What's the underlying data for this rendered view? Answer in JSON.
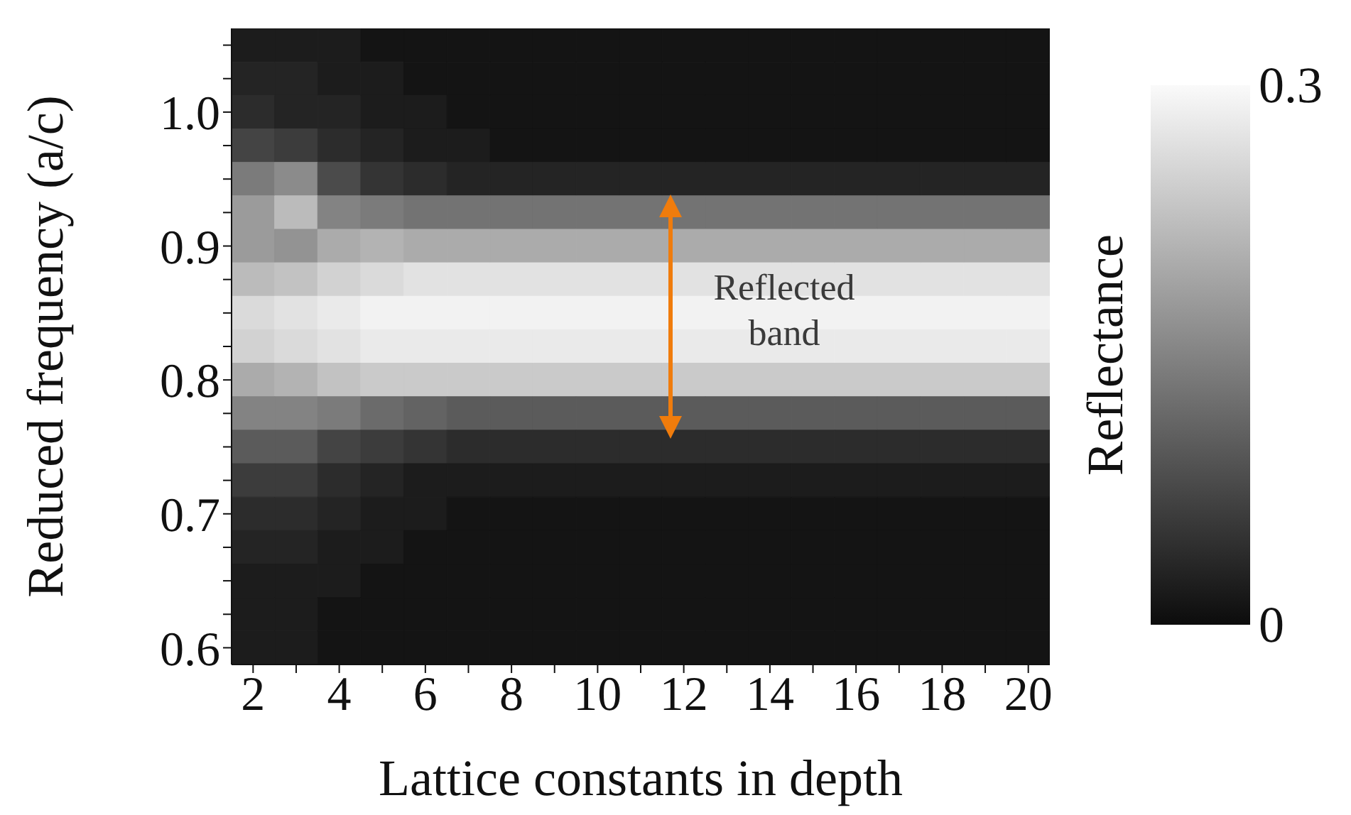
{
  "chart_data": {
    "type": "heatmap",
    "xlabel": "Lattice constants in depth",
    "ylabel": "Reduced frequency (a/c)",
    "clabel": "Reflectance",
    "categories": [
      "2",
      null,
      "4",
      null,
      "6",
      null,
      "8",
      null,
      "10",
      null,
      "12",
      null,
      "14",
      null,
      "16",
      null,
      "18",
      null,
      "20"
    ],
    "y_categories": [
      null,
      null,
      "1.0",
      null,
      null,
      null,
      "0.9",
      null,
      null,
      null,
      "0.8",
      null,
      null,
      null,
      "0.7",
      null,
      null,
      null,
      "0.6"
    ],
    "clim": [
      0,
      0.3
    ],
    "cticks": [
      0,
      0.3
    ],
    "cells": [
      [
        0.02,
        0.02,
        0.02,
        0.01,
        0.01,
        0.01,
        0.01,
        0.01,
        0.01,
        0.01,
        0.01,
        0.01,
        0.01,
        0.01,
        0.01,
        0.01,
        0.01,
        0.01,
        0.01
      ],
      [
        0.03,
        0.03,
        0.02,
        0.02,
        0.01,
        0.01,
        0.01,
        0.01,
        0.01,
        0.01,
        0.01,
        0.01,
        0.01,
        0.01,
        0.01,
        0.01,
        0.01,
        0.01,
        0.01
      ],
      [
        0.04,
        0.03,
        0.03,
        0.02,
        0.02,
        0.01,
        0.01,
        0.01,
        0.01,
        0.01,
        0.01,
        0.01,
        0.01,
        0.01,
        0.01,
        0.01,
        0.01,
        0.01,
        0.01
      ],
      [
        0.07,
        0.06,
        0.04,
        0.03,
        0.02,
        0.02,
        0.01,
        0.01,
        0.01,
        0.01,
        0.01,
        0.01,
        0.01,
        0.01,
        0.01,
        0.01,
        0.01,
        0.01,
        0.01
      ],
      [
        0.14,
        0.16,
        0.08,
        0.05,
        0.04,
        0.03,
        0.03,
        0.03,
        0.03,
        0.03,
        0.03,
        0.03,
        0.03,
        0.03,
        0.03,
        0.03,
        0.03,
        0.03,
        0.03
      ],
      [
        0.18,
        0.22,
        0.15,
        0.14,
        0.13,
        0.13,
        0.13,
        0.13,
        0.13,
        0.13,
        0.13,
        0.13,
        0.13,
        0.13,
        0.13,
        0.13,
        0.13,
        0.13,
        0.13
      ],
      [
        0.18,
        0.17,
        0.2,
        0.21,
        0.2,
        0.2,
        0.2,
        0.2,
        0.2,
        0.2,
        0.2,
        0.2,
        0.2,
        0.2,
        0.2,
        0.2,
        0.2,
        0.2,
        0.2
      ],
      [
        0.22,
        0.23,
        0.25,
        0.26,
        0.27,
        0.27,
        0.27,
        0.27,
        0.27,
        0.27,
        0.27,
        0.27,
        0.27,
        0.27,
        0.27,
        0.27,
        0.27,
        0.27,
        0.27
      ],
      [
        0.26,
        0.27,
        0.28,
        0.29,
        0.29,
        0.29,
        0.29,
        0.29,
        0.29,
        0.29,
        0.29,
        0.29,
        0.29,
        0.29,
        0.29,
        0.29,
        0.29,
        0.29,
        0.29
      ],
      [
        0.25,
        0.26,
        0.27,
        0.28,
        0.28,
        0.28,
        0.28,
        0.28,
        0.28,
        0.28,
        0.28,
        0.28,
        0.28,
        0.28,
        0.28,
        0.28,
        0.28,
        0.28,
        0.28
      ],
      [
        0.2,
        0.21,
        0.23,
        0.24,
        0.24,
        0.24,
        0.24,
        0.24,
        0.24,
        0.24,
        0.24,
        0.24,
        0.24,
        0.24,
        0.24,
        0.24,
        0.24,
        0.24,
        0.24
      ],
      [
        0.15,
        0.15,
        0.14,
        0.12,
        0.11,
        0.1,
        0.1,
        0.1,
        0.1,
        0.1,
        0.1,
        0.1,
        0.1,
        0.1,
        0.1,
        0.1,
        0.1,
        0.1,
        0.1
      ],
      [
        0.1,
        0.1,
        0.07,
        0.06,
        0.05,
        0.04,
        0.04,
        0.04,
        0.04,
        0.04,
        0.04,
        0.04,
        0.04,
        0.04,
        0.04,
        0.04,
        0.04,
        0.04,
        0.04
      ],
      [
        0.06,
        0.06,
        0.04,
        0.03,
        0.02,
        0.02,
        0.02,
        0.02,
        0.02,
        0.02,
        0.02,
        0.02,
        0.02,
        0.02,
        0.02,
        0.02,
        0.02,
        0.02,
        0.02
      ],
      [
        0.04,
        0.04,
        0.03,
        0.02,
        0.02,
        0.01,
        0.01,
        0.01,
        0.01,
        0.01,
        0.01,
        0.01,
        0.01,
        0.01,
        0.01,
        0.01,
        0.01,
        0.01,
        0.01
      ],
      [
        0.03,
        0.03,
        0.02,
        0.02,
        0.01,
        0.01,
        0.01,
        0.01,
        0.01,
        0.01,
        0.01,
        0.01,
        0.01,
        0.01,
        0.01,
        0.01,
        0.01,
        0.01,
        0.01
      ],
      [
        0.02,
        0.02,
        0.02,
        0.01,
        0.01,
        0.01,
        0.01,
        0.01,
        0.01,
        0.01,
        0.01,
        0.01,
        0.01,
        0.01,
        0.01,
        0.01,
        0.01,
        0.01,
        0.01
      ],
      [
        0.02,
        0.02,
        0.01,
        0.01,
        0.01,
        0.01,
        0.01,
        0.01,
        0.01,
        0.01,
        0.01,
        0.01,
        0.01,
        0.01,
        0.01,
        0.01,
        0.01,
        0.01,
        0.01
      ],
      [
        0.02,
        0.02,
        0.01,
        0.01,
        0.01,
        0.01,
        0.01,
        0.01,
        0.01,
        0.01,
        0.01,
        0.01,
        0.01,
        0.01,
        0.01,
        0.01,
        0.01,
        0.01,
        0.01
      ]
    ],
    "annotations": [
      "Reflected band"
    ]
  }
}
